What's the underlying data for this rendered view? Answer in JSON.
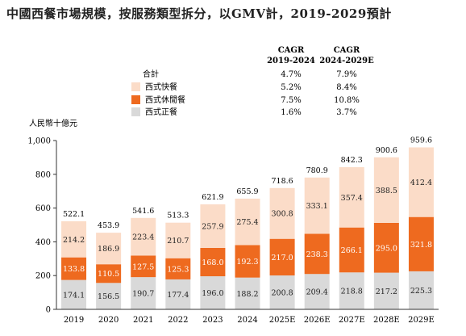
{
  "title": "中國西餐市場規模，按服務類型拆分，以GMV計，2019-2029預計",
  "ylabel": "人民幣十億元",
  "cagr": {
    "headers": [
      [
        "CAGR",
        "2019-2024"
      ],
      [
        "CAGR",
        "2024-2029E"
      ]
    ],
    "rows": [
      {
        "label": "合計",
        "values": [
          "4.7%",
          "7.9%"
        ]
      },
      {
        "label": "西式快餐",
        "values": [
          "5.2%",
          "8.4%"
        ]
      },
      {
        "label": "西式休閒餐",
        "values": [
          "7.5%",
          "10.8%"
        ]
      },
      {
        "label": "西式正餐",
        "values": [
          "1.6%",
          "3.7%"
        ]
      }
    ]
  },
  "colors": {
    "快餐": "#fbdcc8",
    "休閒餐": "#ee6a1f",
    "正餐": "#d9d9d9",
    "axis": "#333333"
  },
  "chart_data": {
    "type": "bar",
    "stacked": true,
    "title": "中國西餐市場規模，按服務類型拆分，以GMV計，2019-2029預計",
    "ylabel": "人民幣十億元",
    "ylim": [
      0,
      1000
    ],
    "yticks": [
      "0",
      "200",
      "400",
      "600",
      "800",
      "1,000"
    ],
    "categories": [
      "2019",
      "2020",
      "2021",
      "2022",
      "2023",
      "2024",
      "2025E",
      "2026E",
      "2027E",
      "2028E",
      "2029E"
    ],
    "series": [
      {
        "name": "西式正餐",
        "values": [
          174.1,
          156.5,
          190.7,
          177.4,
          196.0,
          188.2,
          200.8,
          209.4,
          218.8,
          217.2,
          225.3
        ]
      },
      {
        "name": "西式休閒餐",
        "values": [
          133.8,
          110.5,
          127.5,
          125.3,
          168.0,
          192.3,
          217.0,
          238.3,
          266.1,
          295.0,
          321.8
        ]
      },
      {
        "name": "西式快餐",
        "values": [
          214.2,
          186.9,
          223.4,
          210.7,
          257.9,
          275.4,
          300.8,
          333.1,
          357.4,
          388.5,
          412.4
        ]
      }
    ],
    "totals": [
      522.1,
      453.9,
      541.6,
      513.3,
      621.9,
      655.9,
      718.6,
      780.9,
      842.3,
      900.6,
      959.6
    ],
    "grid": false,
    "legend": "top-left"
  }
}
